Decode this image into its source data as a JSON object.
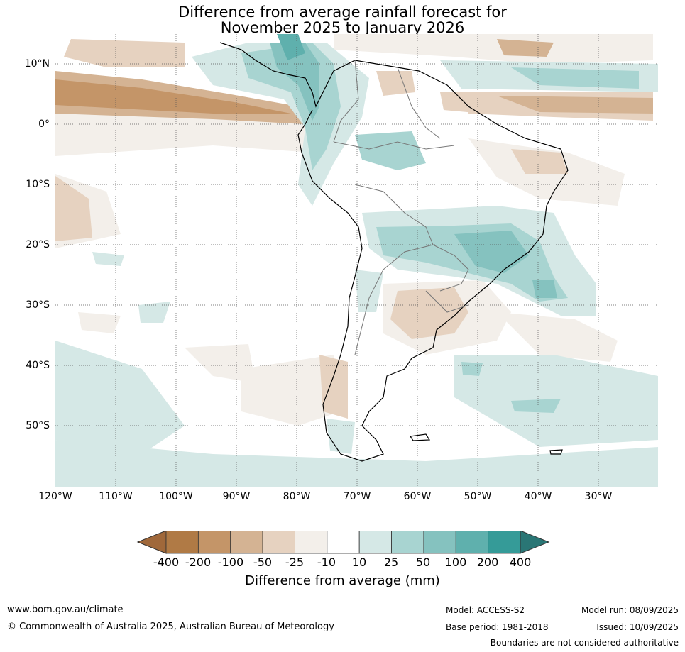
{
  "title": {
    "line1": "Difference from average rainfall forecast for",
    "line2": "November 2025 to January 2026"
  },
  "axes": {
    "lat_labels": [
      "10°N",
      "0°",
      "10°S",
      "20°S",
      "30°S",
      "40°S",
      "50°S"
    ],
    "lon_labels": [
      "120°W",
      "110°W",
      "100°W",
      "90°W",
      "80°W",
      "70°W",
      "60°W",
      "50°W",
      "40°W",
      "30°W"
    ]
  },
  "legend": {
    "title": "Difference from average (mm)",
    "ticks": [
      "-400",
      "-200",
      "-100",
      "-50",
      "-25",
      "-10",
      "10",
      "25",
      "50",
      "100",
      "200",
      "400"
    ],
    "colors": [
      "#a0683a",
      "#b07a45",
      "#c49568",
      "#d4b393",
      "#e6d2c0",
      "#f3efea",
      "#ffffff",
      "#d5e8e6",
      "#a8d4d1",
      "#85c2bf",
      "#5fb0ad",
      "#359b98",
      "#2a7675"
    ]
  },
  "footer": {
    "url": "www.bom.gov.au/climate",
    "copyright": "© Commonwealth of Australia 2025, Australian Bureau of Meteorology",
    "model": "Model: ACCESS-S2",
    "base_period": "Base period: 1981-2018",
    "model_run": "Model run: 08/09/2025",
    "issued": "Issued: 10/09/2025",
    "boundaries": "Boundaries are not considered authoritative"
  }
}
